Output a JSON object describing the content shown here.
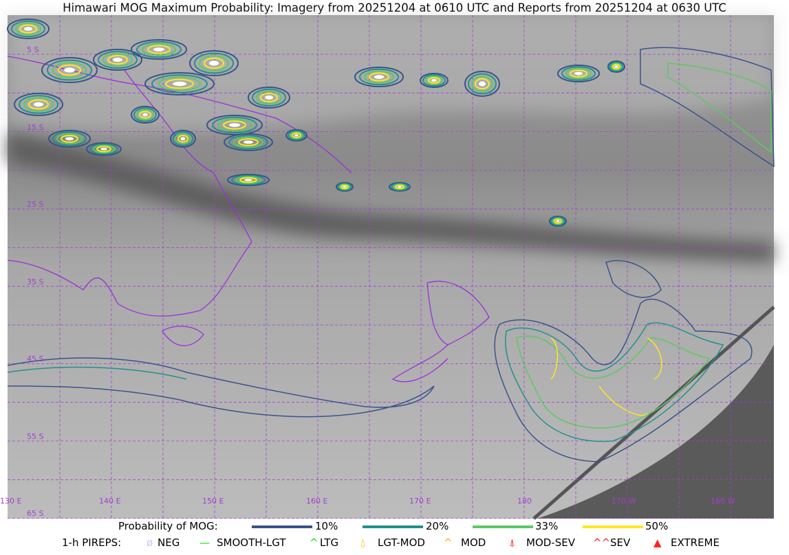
{
  "title": "Himawari MOG Maximum Probability: Imagery from 20251204 at 0610 UTC and Reports from 20251204 at 0630 UTC",
  "map": {
    "lat_labels": [
      "5 S",
      "15 S",
      "25 S",
      "35 S",
      "45 S",
      "55 S",
      "65 S"
    ],
    "lon_labels": [
      "130 E",
      "140 E",
      "150 E",
      "160 E",
      "170 E",
      "180",
      "170 W",
      "160 W"
    ],
    "colors": {
      "grid": "#a040d0",
      "coast": "#9b30d9",
      "no_data": "#5a5a5a"
    }
  },
  "legend": {
    "probability_label": "Probability of MOG:",
    "probability_levels": [
      {
        "label": "10%",
        "color": "#3b528b"
      },
      {
        "label": "20%",
        "color": "#21908d"
      },
      {
        "label": "33%",
        "color": "#5dc863"
      },
      {
        "label": "50%",
        "color": "#fde725"
      }
    ],
    "pireps_label": "1-h PIREPS:",
    "pireps": [
      {
        "label": "NEG",
        "color": "#c8c8ff",
        "icon": "slashed-circle-icon"
      },
      {
        "label": "SMOOTH-LGT",
        "color": "#00e000",
        "icon": "dash-icon"
      },
      {
        "label": "LTG",
        "color": "#00e000",
        "icon": "caret-icon"
      },
      {
        "label": "LGT-MOD",
        "color": "#ffb000",
        "icon": "caret-bar-icon"
      },
      {
        "label": "MOD",
        "color": "#ffb000",
        "icon": "caret-icon"
      },
      {
        "label": "MOD-SEV",
        "color": "#ff2020",
        "icon": "double-caret-bar-icon"
      },
      {
        "label": "SEV",
        "color": "#ff2020",
        "icon": "double-caret-icon"
      },
      {
        "label": "EXTREME",
        "color": "#ff2020",
        "icon": "filled-triangle-icon"
      }
    ]
  }
}
